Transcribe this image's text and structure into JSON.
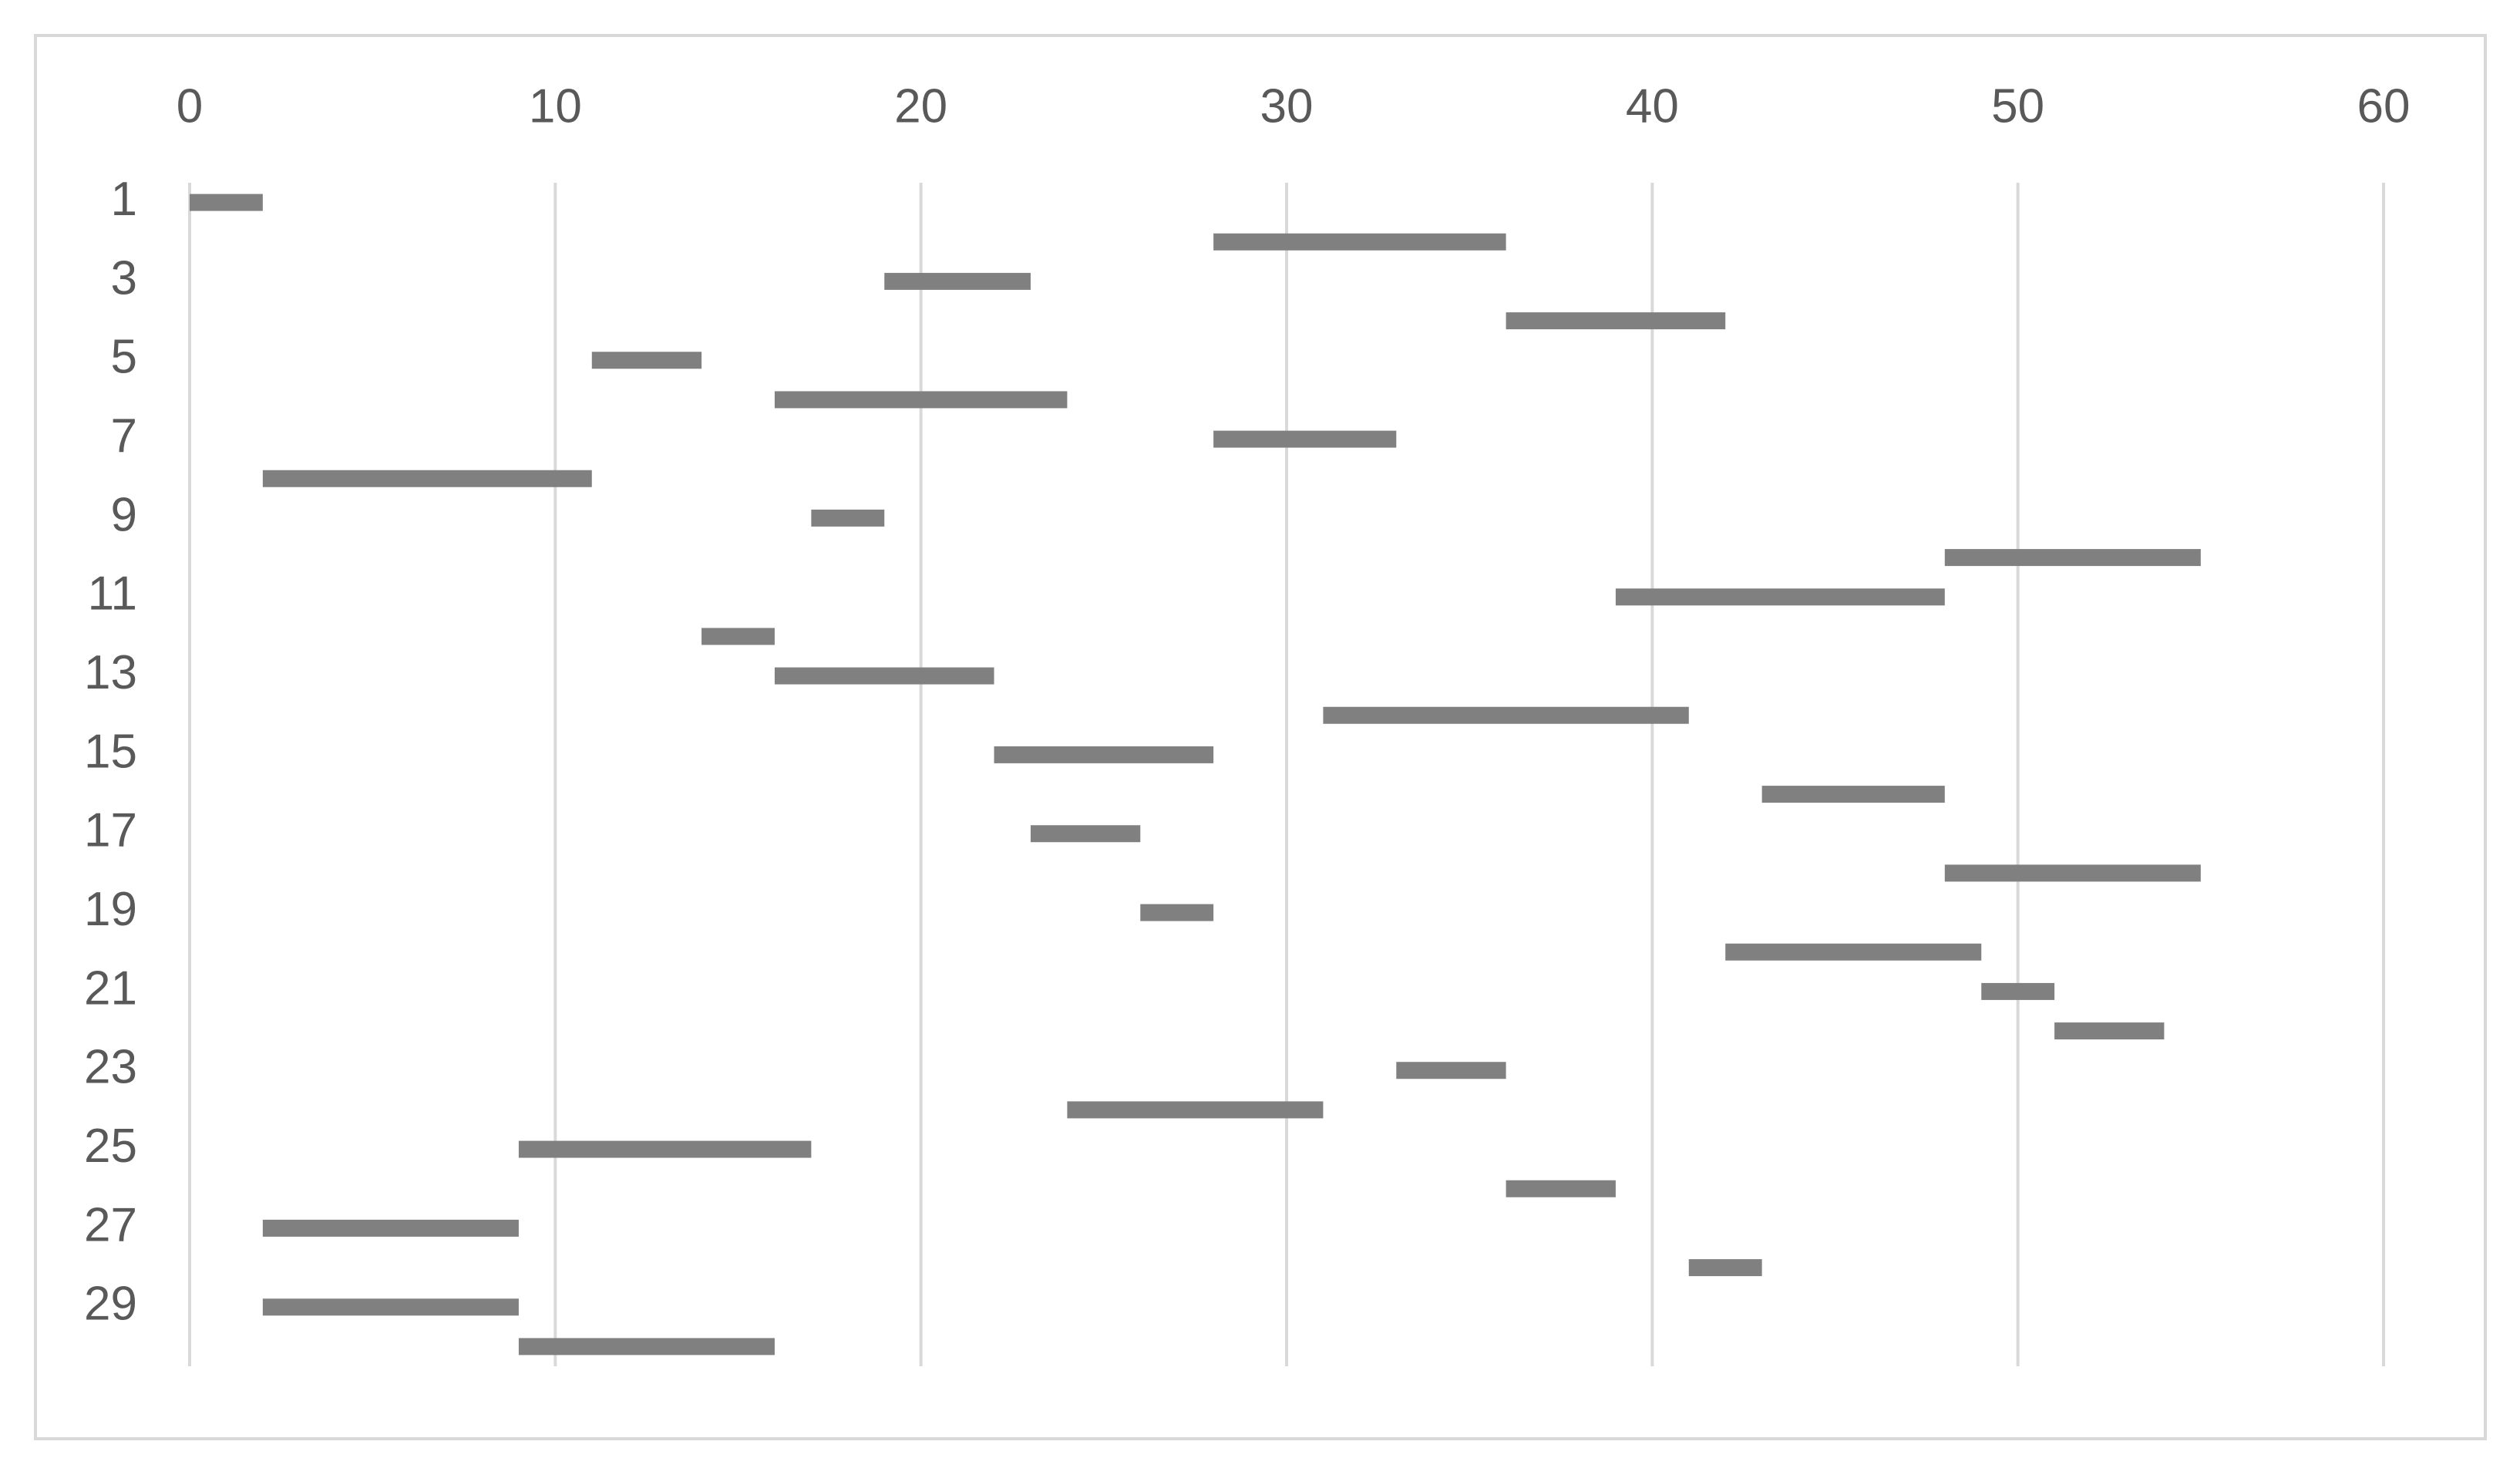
{
  "chart_data": {
    "type": "gantt",
    "categories": [
      "1",
      null,
      "3",
      null,
      "5",
      null,
      "7",
      null,
      "9",
      null,
      "11",
      null,
      "13",
      null,
      "15",
      null,
      "17",
      null,
      "19",
      null,
      "21",
      null,
      "23",
      null,
      "25",
      null,
      "27",
      null,
      "29",
      null
    ],
    "start": [
      0,
      28,
      19,
      36,
      11,
      16,
      28,
      2,
      17,
      48,
      39,
      14,
      16,
      31,
      22,
      43,
      23,
      48,
      26,
      42,
      49,
      51,
      33,
      24,
      9,
      36,
      2,
      41,
      2,
      9
    ],
    "duration": [
      2,
      8,
      4,
      6,
      3,
      8,
      5,
      9,
      2,
      7,
      9,
      2,
      6,
      10,
      6,
      5,
      3,
      7,
      2,
      7,
      2,
      3,
      3,
      7,
      8,
      3,
      7,
      2,
      7,
      7
    ],
    "color": "#808080",
    "xlim": [
      0,
      60
    ],
    "xticks": [
      0,
      10,
      20,
      30,
      40,
      50,
      60
    ],
    "grid": true,
    "x_axis_position": "top",
    "categories_reversed": true
  }
}
